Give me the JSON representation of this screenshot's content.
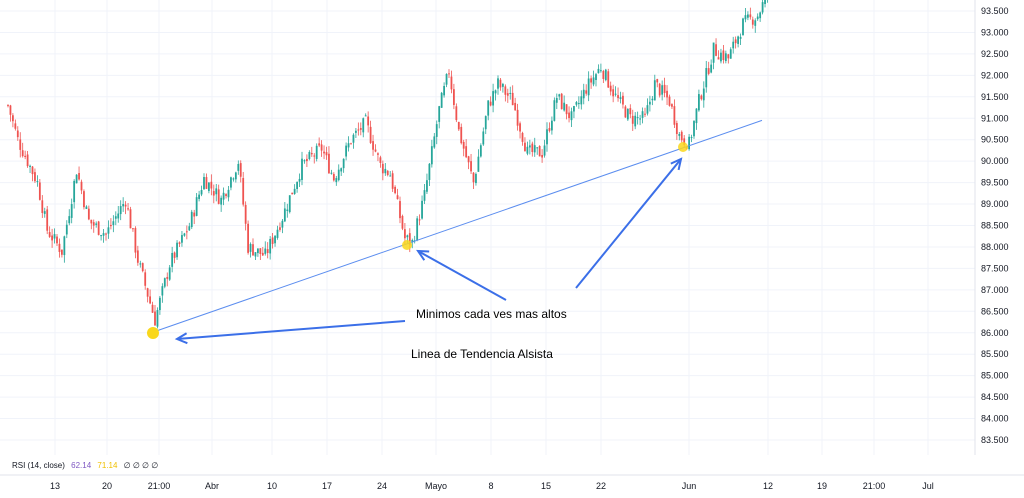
{
  "chart_data": {
    "type": "candlestick",
    "y_axis": {
      "position": "right",
      "ticks": [
        "93.500",
        "93.000",
        "92.500",
        "92.000",
        "91.500",
        "91.000",
        "90.500",
        "90.000",
        "89.500",
        "89.000",
        "88.500",
        "88.000",
        "87.500",
        "87.000",
        "86.500",
        "86.000",
        "85.500",
        "85.000",
        "84.500",
        "84.000",
        "83.500"
      ],
      "ylim": [
        83.2,
        93.9
      ]
    },
    "x_axis": {
      "ticks": [
        "13",
        "20",
        "21:00",
        "Abr",
        "10",
        "17",
        "24",
        "Mayo",
        "8",
        "15",
        "22",
        "Jun",
        "12",
        "19",
        "21:00",
        "Jul"
      ]
    },
    "grid": true,
    "series": [
      {
        "key_points": [
          {
            "i": 0,
            "v": 91.3
          },
          {
            "i": 4,
            "v": 90.5
          },
          {
            "i": 12,
            "v": 89.5
          },
          {
            "i": 16,
            "v": 88.4
          },
          {
            "i": 22,
            "v": 87.9
          },
          {
            "i": 28,
            "v": 89.8
          },
          {
            "i": 33,
            "v": 88.6
          },
          {
            "i": 40,
            "v": 88.3
          },
          {
            "i": 48,
            "v": 89.1
          },
          {
            "i": 53,
            "v": 87.7
          },
          {
            "i": 60,
            "v": 86.3
          },
          {
            "i": 66,
            "v": 87.6
          },
          {
            "i": 74,
            "v": 88.5
          },
          {
            "i": 80,
            "v": 89.6
          },
          {
            "i": 87,
            "v": 89.1
          },
          {
            "i": 94,
            "v": 90.0
          },
          {
            "i": 98,
            "v": 88.0
          },
          {
            "i": 105,
            "v": 87.8
          },
          {
            "i": 112,
            "v": 88.7
          },
          {
            "i": 120,
            "v": 89.9
          },
          {
            "i": 128,
            "v": 90.3
          },
          {
            "i": 133,
            "v": 89.6
          },
          {
            "i": 140,
            "v": 90.5
          },
          {
            "i": 146,
            "v": 90.9
          },
          {
            "i": 152,
            "v": 89.9
          },
          {
            "i": 156,
            "v": 89.7
          },
          {
            "i": 162,
            "v": 88.2
          },
          {
            "i": 165,
            "v": 88.1
          },
          {
            "i": 170,
            "v": 89.2
          },
          {
            "i": 176,
            "v": 91.2
          },
          {
            "i": 180,
            "v": 92.1
          },
          {
            "i": 184,
            "v": 90.7
          },
          {
            "i": 190,
            "v": 89.5
          },
          {
            "i": 196,
            "v": 91.3
          },
          {
            "i": 200,
            "v": 91.8
          },
          {
            "i": 206,
            "v": 91.4
          },
          {
            "i": 212,
            "v": 90.2
          },
          {
            "i": 218,
            "v": 90.2
          },
          {
            "i": 224,
            "v": 91.5
          },
          {
            "i": 230,
            "v": 91.0
          },
          {
            "i": 236,
            "v": 91.7
          },
          {
            "i": 242,
            "v": 92.2
          },
          {
            "i": 248,
            "v": 91.5
          },
          {
            "i": 254,
            "v": 91.0
          },
          {
            "i": 260,
            "v": 91.0
          },
          {
            "i": 264,
            "v": 91.8
          },
          {
            "i": 270,
            "v": 91.4
          },
          {
            "i": 274,
            "v": 90.6
          },
          {
            "i": 278,
            "v": 90.4
          },
          {
            "i": 282,
            "v": 91.4
          },
          {
            "i": 288,
            "v": 92.6
          },
          {
            "i": 294,
            "v": 92.4
          },
          {
            "i": 300,
            "v": 93.2
          },
          {
            "i": 306,
            "v": 93.4
          },
          {
            "i": 310,
            "v": 93.9
          }
        ]
      }
    ],
    "trendline": {
      "from": {
        "i": 60,
        "v": 86.0
      },
      "to": {
        "i": 310,
        "v": 90.95
      }
    },
    "highlights": [
      {
        "i": 60,
        "v": 86.0
      },
      {
        "i": 163,
        "v": 88.1
      },
      {
        "i": 278,
        "v": 90.35
      }
    ],
    "annotations": [
      {
        "text": "Minimos  cada ves mas  altos"
      },
      {
        "text": "Linea de Tendencia Alsista"
      }
    ],
    "colors": {
      "up": "#26a69a",
      "down": "#ef5350",
      "trendline": "#5b8def",
      "highlight": "#f9d71c",
      "arrow": "#3b6fe8"
    }
  },
  "rsi_label": {
    "name": "RSI (14, close)",
    "value1": "62.14",
    "value2": "71.14",
    "empties": "∅ ∅ ∅ ∅"
  }
}
